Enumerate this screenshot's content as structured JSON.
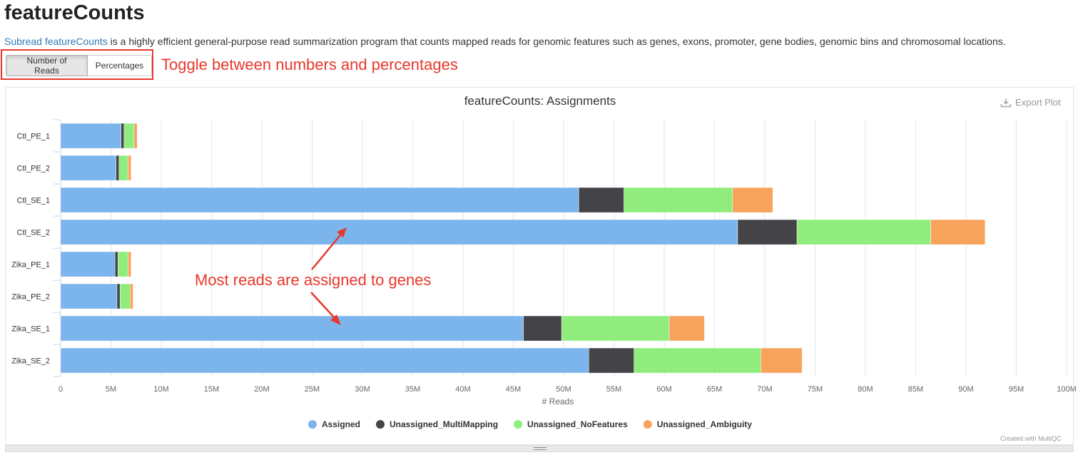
{
  "page": {
    "title": "featureCounts",
    "intro_link": "Subread featureCounts",
    "intro_text": " is a highly efficient general-purpose read summarization program that counts mapped reads for genomic features such as genes, exons, promoter, gene bodies, genomic bins and chromosomal locations."
  },
  "toggle": {
    "reads_label": "Number of Reads",
    "percent_label": "Percentages",
    "note": "Toggle between numbers and percentages"
  },
  "plot": {
    "export_label": "Export Plot",
    "credit": "Created with MultiQC",
    "annotation": "Most reads are assigned to genes"
  },
  "colors": {
    "Assigned": "#7cb5ec",
    "Unassigned_MultiMapping": "#434348",
    "Unassigned_NoFeatures": "#90ed7d",
    "Unassigned_Ambiguity": "#f7a35c",
    "annotation": "#e8372c"
  },
  "chart_data": {
    "type": "bar",
    "orientation": "horizontal",
    "stacked": true,
    "title": "featureCounts: Assignments",
    "xlabel": "# Reads",
    "ylabel": "",
    "xlim": [
      0,
      100000000
    ],
    "x_ticks": [
      "0",
      "5M",
      "10M",
      "15M",
      "20M",
      "25M",
      "30M",
      "35M",
      "40M",
      "45M",
      "50M",
      "55M",
      "60M",
      "65M",
      "70M",
      "75M",
      "80M",
      "85M",
      "90M",
      "95M",
      "100M"
    ],
    "grid": true,
    "legend_position": "bottom",
    "categories": [
      "Ctl_PE_1",
      "Ctl_PE_2",
      "Ctl_SE_1",
      "Ctl_SE_2",
      "Zika_PE_1",
      "Zika_PE_2",
      "Zika_SE_1",
      "Zika_SE_2"
    ],
    "series": [
      {
        "name": "Assigned",
        "values": [
          6000000,
          5500000,
          51500000,
          67300000,
          5400000,
          5600000,
          46000000,
          52500000
        ]
      },
      {
        "name": "Unassigned_MultiMapping",
        "values": [
          300000,
          300000,
          4500000,
          5900000,
          300000,
          300000,
          3800000,
          4500000
        ]
      },
      {
        "name": "Unassigned_NoFeatures",
        "values": [
          1000000,
          900000,
          10800000,
          13300000,
          1000000,
          1000000,
          10700000,
          12600000
        ]
      },
      {
        "name": "Unassigned_Ambiguity",
        "values": [
          300000,
          300000,
          4000000,
          5400000,
          300000,
          300000,
          3500000,
          4100000
        ]
      }
    ]
  }
}
